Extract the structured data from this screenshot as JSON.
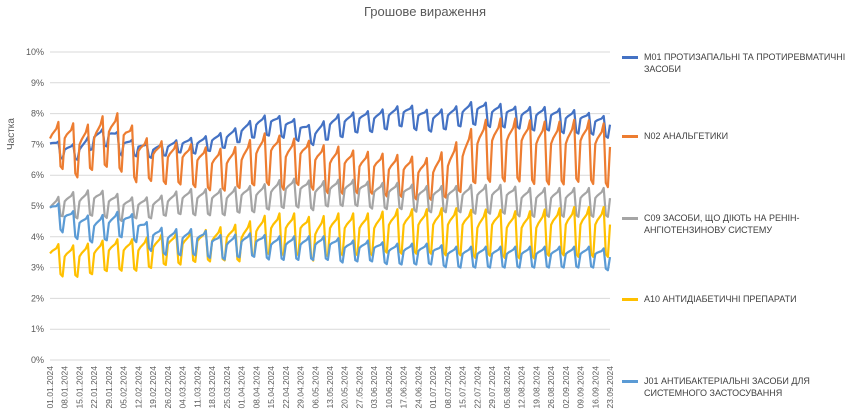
{
  "chart_data": {
    "type": "line",
    "title": "Грошове вираження",
    "ylabel": "Частка",
    "xlabel": "",
    "ylim": [
      0,
      10
    ],
    "y_ticks": [
      "0%",
      "1%",
      "2%",
      "3%",
      "4%",
      "5%",
      "6%",
      "7%",
      "8%",
      "9%",
      "10%"
    ],
    "x_tick_labels": [
      "01.01.2024",
      "08.01.2024",
      "15.01.2024",
      "22.01.2024",
      "29.01.2024",
      "05.02.2024",
      "12.02.2024",
      "19.02.2024",
      "26.02.2024",
      "04.03.2024",
      "11.03.2024",
      "18.03.2024",
      "25.03.2024",
      "01.04.2024",
      "08.04.2024",
      "15.04.2024",
      "22.04.2024",
      "29.04.2024",
      "06.05.2024",
      "13.05.2024",
      "20.05.2024",
      "27.05.2024",
      "03.06.2024",
      "10.06.2024",
      "17.06.2024",
      "24.06.2024",
      "01.07.2024",
      "08.07.2024",
      "15.07.2024",
      "22.07.2024",
      "29.07.2024",
      "05.08.2024",
      "12.08.2024",
      "19.08.2024",
      "26.08.2024",
      "02.09.2024",
      "09.09.2024",
      "16.09.2024",
      "23.09.2024"
    ],
    "grid": "horizontal",
    "legend_position": "right",
    "series": [
      {
        "name": "M01 ПРОТИЗАПАЛЬНІ ТА ПРОТИРЕВМАТИЧНІ ЗАСОБИ",
        "color": "#4472C4",
        "weekly": [
          7.0,
          6.8,
          6.8,
          7.2,
          7.3,
          7.0,
          6.9,
          6.8,
          6.9,
          7.0,
          7.0,
          7.1,
          7.2,
          7.4,
          7.6,
          7.7,
          7.6,
          7.5,
          7.3,
          7.6,
          7.7,
          7.8,
          7.8,
          7.9,
          8.0,
          7.9,
          7.8,
          7.9,
          8.0,
          8.1,
          8.0,
          8.0,
          7.9,
          7.9,
          7.9,
          7.8,
          7.8,
          7.7,
          7.6
        ],
        "amplitude": [
          0.3,
          0.3,
          0.3,
          0.35,
          0.4,
          0.3,
          0.25,
          0.25,
          0.25,
          0.3,
          0.3,
          0.3,
          0.3,
          0.35,
          0.4,
          0.4,
          0.4,
          0.35,
          0.4,
          0.45,
          0.4,
          0.4,
          0.4,
          0.4,
          0.45,
          0.4,
          0.4,
          0.4,
          0.45,
          0.45,
          0.45,
          0.4,
          0.45,
          0.45,
          0.45,
          0.45,
          0.4,
          0.4,
          0.4
        ]
      },
      {
        "name": "N02 АНАЛЬГЕТИКИ",
        "color": "#ED7D31",
        "weekly": [
          7.1,
          7.1,
          6.9,
          7.1,
          7.3,
          7.2,
          6.7,
          6.6,
          6.5,
          6.5,
          6.4,
          6.3,
          6.3,
          6.4,
          6.6,
          6.7,
          6.5,
          6.6,
          6.4,
          6.3,
          6.3,
          6.2,
          6.2,
          6.1,
          6.1,
          6.0,
          6.0,
          6.2,
          6.5,
          6.9,
          7.0,
          7.0,
          7.0,
          6.9,
          6.9,
          6.9,
          7.0,
          6.9,
          6.8
        ],
        "amplitude": [
          0.9,
          1.0,
          0.9,
          1.0,
          1.1,
          1.0,
          0.8,
          0.8,
          0.8,
          0.8,
          0.8,
          0.8,
          0.8,
          0.9,
          1.0,
          1.0,
          0.9,
          0.9,
          0.9,
          0.9,
          0.8,
          0.8,
          0.8,
          0.8,
          0.8,
          0.8,
          0.9,
          1.0,
          1.1,
          1.2,
          1.2,
          1.2,
          1.2,
          1.2,
          1.2,
          1.2,
          1.2,
          1.2,
          1.2
        ]
      },
      {
        "name": "C09 ЗАСОБИ, ЩО ДІЮТЬ НА РЕНІН-АНГІОТЕНЗИНОВУ СИСТЕМУ",
        "color": "#A5A5A5",
        "weekly": [
          4.9,
          5.1,
          5.1,
          5.2,
          5.1,
          5.0,
          5.0,
          5.0,
          5.1,
          5.2,
          5.2,
          5.2,
          5.2,
          5.3,
          5.3,
          5.4,
          5.5,
          5.5,
          5.4,
          5.5,
          5.5,
          5.5,
          5.4,
          5.4,
          5.4,
          5.3,
          5.3,
          5.3,
          5.3,
          5.3,
          5.3,
          5.3,
          5.2,
          5.2,
          5.2,
          5.2,
          5.2,
          5.2,
          5.2
        ],
        "amplitude": [
          0.4,
          0.5,
          0.5,
          0.5,
          0.5,
          0.4,
          0.4,
          0.4,
          0.45,
          0.5,
          0.5,
          0.5,
          0.5,
          0.5,
          0.5,
          0.55,
          0.55,
          0.55,
          0.5,
          0.5,
          0.5,
          0.5,
          0.5,
          0.5,
          0.5,
          0.5,
          0.5,
          0.5,
          0.55,
          0.55,
          0.55,
          0.55,
          0.55,
          0.55,
          0.55,
          0.55,
          0.55,
          0.55,
          0.55
        ]
      },
      {
        "name": "A10 АНТИДІАБЕТИЧНІ ПРЕПАРАТИ",
        "color": "#FFC000",
        "weekly": [
          3.4,
          3.3,
          3.3,
          3.4,
          3.5,
          3.5,
          3.5,
          3.6,
          3.7,
          3.7,
          3.8,
          3.8,
          3.9,
          3.9,
          4.1,
          4.2,
          4.2,
          4.2,
          4.0,
          4.2,
          4.2,
          4.2,
          4.2,
          4.3,
          4.3,
          4.3,
          4.3,
          4.3,
          4.3,
          4.2,
          4.3,
          4.2,
          4.2,
          4.2,
          4.3,
          4.3,
          4.3,
          4.3,
          4.3
        ],
        "amplitude": [
          0.6,
          0.6,
          0.6,
          0.6,
          0.6,
          0.6,
          0.6,
          0.6,
          0.6,
          0.6,
          0.6,
          0.65,
          0.7,
          0.7,
          0.75,
          0.8,
          0.8,
          0.8,
          0.8,
          0.8,
          0.8,
          0.8,
          0.8,
          0.85,
          0.85,
          0.85,
          0.9,
          0.9,
          0.9,
          0.9,
          0.9,
          0.9,
          0.9,
          0.9,
          0.9,
          0.95,
          0.95,
          0.95,
          0.95
        ]
      },
      {
        "name": "J01 АНТИБАКТЕРІАЛЬНІ ЗАСОБИ ДЛЯ СИСТЕМНОГО ЗАСТОСУВАННЯ",
        "color": "#5B9BD5",
        "weekly": [
          4.9,
          4.6,
          4.4,
          4.3,
          4.4,
          4.5,
          4.3,
          4.0,
          3.9,
          3.9,
          3.9,
          3.8,
          3.7,
          3.8,
          3.8,
          3.7,
          3.7,
          3.7,
          3.7,
          3.7,
          3.6,
          3.6,
          3.6,
          3.5,
          3.5,
          3.5,
          3.5,
          3.4,
          3.4,
          3.4,
          3.4,
          3.4,
          3.4,
          3.4,
          3.4,
          3.4,
          3.4,
          3.4,
          3.3
        ],
        "amplitude": [
          0.5,
          0.5,
          0.5,
          0.5,
          0.5,
          0.5,
          0.5,
          0.5,
          0.5,
          0.5,
          0.5,
          0.45,
          0.45,
          0.45,
          0.45,
          0.45,
          0.45,
          0.45,
          0.45,
          0.45,
          0.4,
          0.4,
          0.4,
          0.4,
          0.4,
          0.4,
          0.4,
          0.4,
          0.4,
          0.4,
          0.4,
          0.4,
          0.4,
          0.4,
          0.4,
          0.4,
          0.4,
          0.4,
          0.4
        ]
      }
    ]
  }
}
